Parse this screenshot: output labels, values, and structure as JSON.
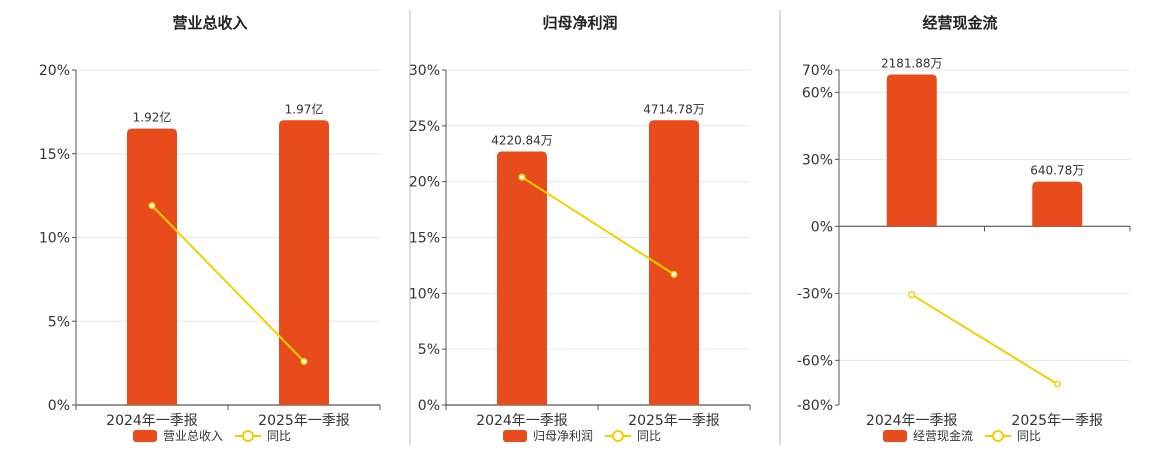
{
  "colors": {
    "bar": "#e84c1c",
    "line": "#f2d000",
    "axis": "#555555",
    "grid": "#e6e6e6",
    "divider": "#bbbbbb"
  },
  "chart_data": [
    {
      "type": "bar",
      "title": "营业总收入",
      "categories": [
        "2024年一季报",
        "2025年一季报"
      ],
      "series": [
        {
          "name": "营业总收入",
          "type": "bar",
          "values": [
            16.5,
            17.0
          ],
          "labels": [
            "1.92亿",
            "1.97亿"
          ]
        },
        {
          "name": "同比",
          "type": "line",
          "values": [
            11.9,
            2.6
          ]
        }
      ],
      "yticks": [
        "0%",
        "5%",
        "10%",
        "15%",
        "20%"
      ],
      "ylim": [
        0,
        20
      ],
      "grid": true,
      "legend": "bottom"
    },
    {
      "type": "bar",
      "title": "归母净利润",
      "categories": [
        "2024年一季报",
        "2025年一季报"
      ],
      "series": [
        {
          "name": "归母净利润",
          "type": "bar",
          "values": [
            22.7,
            25.5
          ],
          "labels": [
            "4220.84万",
            "4714.78万"
          ]
        },
        {
          "name": "同比",
          "type": "line",
          "values": [
            20.4,
            11.7
          ]
        }
      ],
      "yticks": [
        "0%",
        "5%",
        "10%",
        "15%",
        "20%",
        "25%",
        "30%"
      ],
      "ylim": [
        0,
        30
      ],
      "grid": true,
      "legend": "bottom"
    },
    {
      "type": "bar",
      "title": "经营现金流",
      "categories": [
        "2024年一季报",
        "2025年一季报"
      ],
      "series": [
        {
          "name": "经营现金流",
          "type": "bar",
          "values": [
            68,
            20
          ],
          "labels": [
            "2181.88万",
            "640.78万"
          ]
        },
        {
          "name": "同比",
          "type": "line",
          "values": [
            -30.6,
            -70.6
          ]
        }
      ],
      "yticks": [
        "-80%",
        "-60%",
        "-30%",
        "0%",
        "30%",
        "60%",
        "70%"
      ],
      "ylim": [
        -80,
        70
      ],
      "grid": true,
      "legend": "bottom"
    }
  ]
}
